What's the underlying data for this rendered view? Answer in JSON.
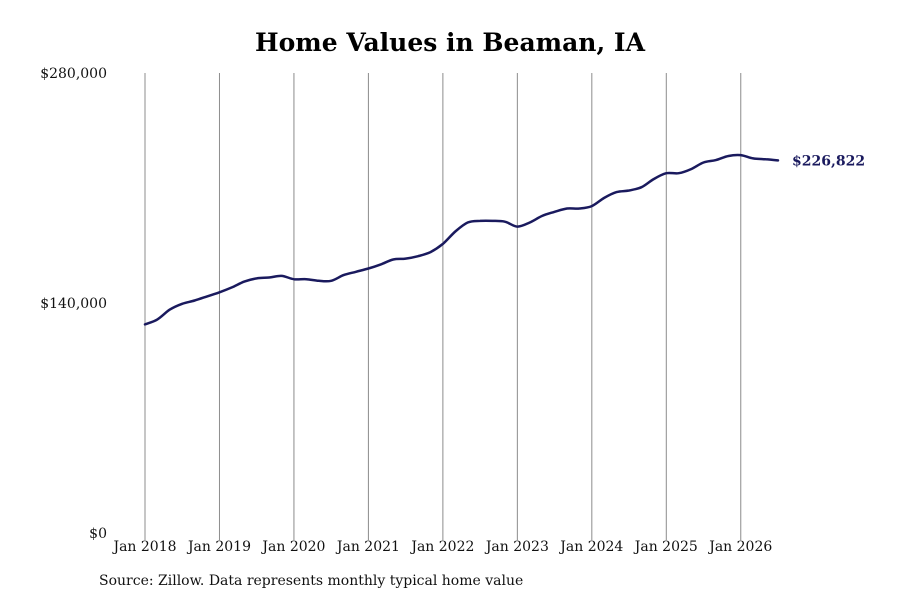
{
  "chart_data": {
    "type": "line",
    "title": "Home Values in Beaman, IA",
    "source": "Source: Zillow. Data represents monthly typical home value",
    "y_tick_labels": [
      "$0",
      "$140,000",
      "$280,000"
    ],
    "y_ticks": [
      0,
      140000,
      280000
    ],
    "ylim": [
      0,
      280000
    ],
    "x_tick_labels": [
      "Jan 2018",
      "Jan 2019",
      "Jan 2020",
      "Jan 2021",
      "Jan 2022",
      "Jan 2023",
      "Jan 2024",
      "Jan 2025",
      "Jan 2026"
    ],
    "x_ticks": [
      "2018-01",
      "2019-01",
      "2020-01",
      "2021-01",
      "2022-01",
      "2023-01",
      "2024-01",
      "2025-01",
      "2026-01"
    ],
    "xlim": [
      "2018-01",
      "2026-07"
    ],
    "grid": "vertical",
    "line_color": "#1a1a5e",
    "end_label": "$226,822",
    "series": [
      {
        "x": [
          "2018-01",
          "2018-03",
          "2018-05",
          "2018-07",
          "2018-09",
          "2018-11",
          "2019-01",
          "2019-03",
          "2019-05",
          "2019-07",
          "2019-09",
          "2019-11",
          "2020-01",
          "2020-03",
          "2020-05",
          "2020-07",
          "2020-09",
          "2020-11",
          "2021-01",
          "2021-03",
          "2021-05",
          "2021-07",
          "2021-09",
          "2021-11",
          "2022-01",
          "2022-03",
          "2022-05",
          "2022-07",
          "2022-09",
          "2022-11",
          "2023-01",
          "2023-03",
          "2023-05",
          "2023-07",
          "2023-09",
          "2023-11",
          "2024-01",
          "2024-03",
          "2024-05",
          "2024-07",
          "2024-09",
          "2024-11",
          "2025-01",
          "2025-03",
          "2025-05",
          "2025-07",
          "2025-09",
          "2025-11",
          "2026-01",
          "2026-03",
          "2026-05",
          "2026-07"
        ],
        "values": [
          127000,
          130000,
          136000,
          139500,
          141500,
          144000,
          146500,
          149500,
          153000,
          155000,
          155500,
          156500,
          154500,
          154500,
          153500,
          153500,
          157000,
          159000,
          161000,
          163500,
          166500,
          167000,
          168500,
          171000,
          176000,
          183500,
          189000,
          190000,
          190000,
          189500,
          186500,
          189000,
          193000,
          195500,
          197500,
          197500,
          199000,
          204000,
          207500,
          208500,
          210500,
          215500,
          219000,
          219000,
          221500,
          225500,
          227000,
          229500,
          230000,
          228000,
          227500,
          226822
        ]
      }
    ]
  }
}
